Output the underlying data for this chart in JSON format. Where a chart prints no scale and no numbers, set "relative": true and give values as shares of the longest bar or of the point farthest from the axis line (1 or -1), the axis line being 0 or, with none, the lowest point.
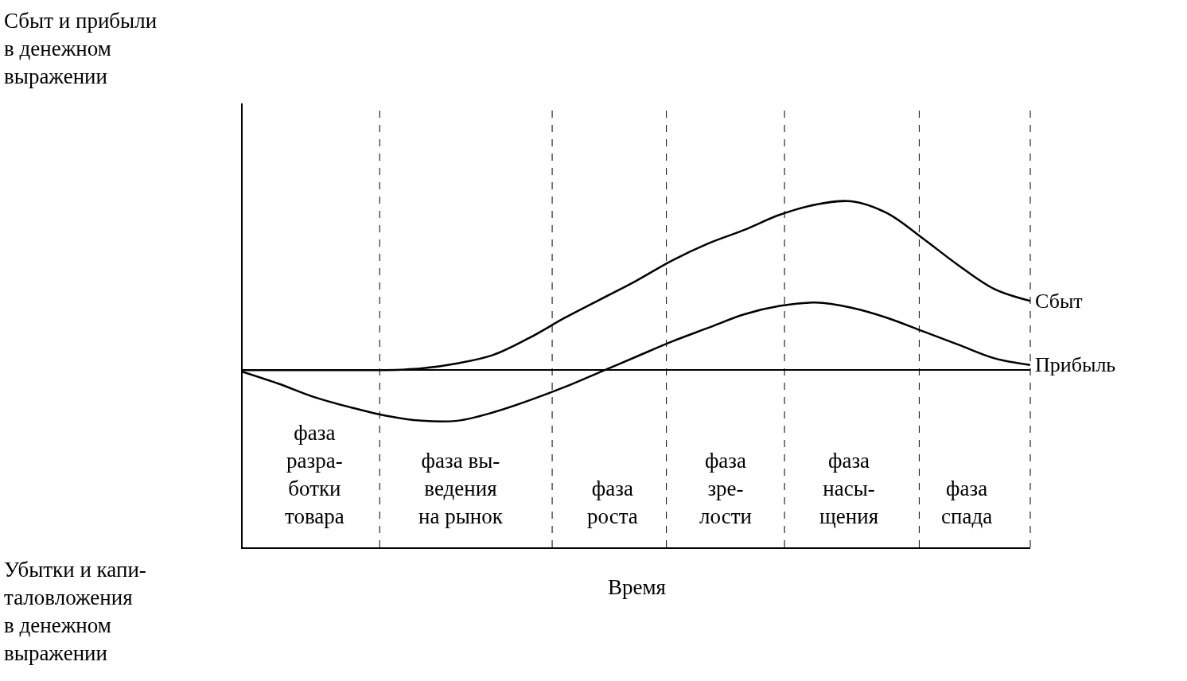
{
  "chart_data": {
    "type": "line",
    "relative": true,
    "annotations": [
      "Сбыт и прибыли\nв денежном\nвыражении",
      "Убытки и капи-\nталовложения\nв денежном\nвыражении",
      "Время",
      "фаза\nразра-\nботки\nтовара",
      "фаза вы-\nведения\nна рынок",
      "фаза\nроста",
      "фаза\nзре-\nлости",
      "фаза\nнасы-\nщения",
      "фаза\nспада"
    ],
    "categories": [
      null,
      null,
      null,
      null,
      null,
      null,
      null,
      null,
      null,
      null,
      null,
      null,
      null,
      null,
      null,
      null,
      null,
      null,
      null,
      null,
      null,
      null,
      null
    ],
    "series": [
      {
        "name": "Сбыт",
        "color": "#000000",
        "values": [
          0,
          0,
          0,
          0,
          0,
          0.01,
          0.04,
          0.09,
          0.19,
          0.31,
          0.42,
          0.53,
          0.65,
          0.75,
          0.83,
          0.92,
          0.98,
          1.0,
          0.93,
          0.78,
          0.62,
          0.48,
          0.41
        ]
      },
      {
        "name": "Прибыль",
        "color": "#000000",
        "values": [
          -0.01,
          -0.08,
          -0.16,
          -0.22,
          -0.27,
          -0.3,
          -0.3,
          -0.25,
          -0.18,
          -0.1,
          -0.01,
          0.08,
          0.17,
          0.25,
          0.33,
          0.38,
          0.4,
          0.37,
          0.31,
          0.23,
          0.15,
          0.07,
          0.03
        ]
      }
    ],
    "line_style": "solid",
    "marker": "none",
    "legend": false
  }
}
